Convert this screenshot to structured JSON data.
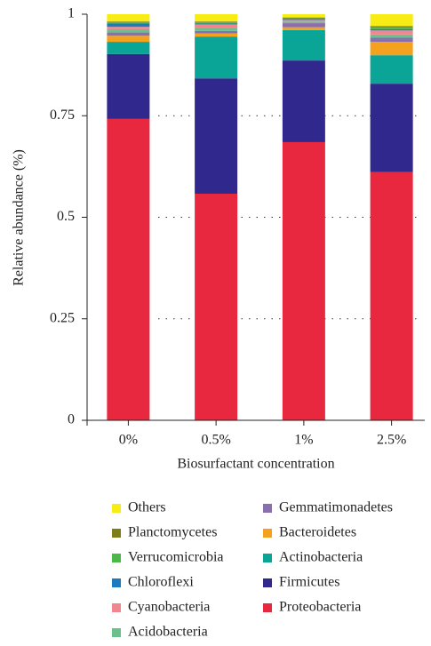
{
  "chart_data": {
    "type": "stacked_bar",
    "xlabel": "Biosurfactant concentration",
    "ylabel": "Relative abundance (%)",
    "categories": [
      "0%",
      "0.5%",
      "1%",
      "2.5%"
    ],
    "ylim": [
      0,
      1
    ],
    "yticks": [
      0,
      0.25,
      0.5,
      0.75,
      1
    ],
    "grid": true,
    "series": [
      {
        "name": "Proteobacteria",
        "color": "#e8283f",
        "values": [
          0.742,
          0.558,
          0.685,
          0.611
        ]
      },
      {
        "name": "Firmicutes",
        "color": "#30288c",
        "values": [
          0.16,
          0.284,
          0.201,
          0.218
        ]
      },
      {
        "name": "Actinobacteria",
        "color": "#0aa597",
        "values": [
          0.03,
          0.103,
          0.075,
          0.07
        ]
      },
      {
        "name": "Bacteroidetes",
        "color": "#f4a11e",
        "values": [
          0.015,
          0.008,
          0.007,
          0.033
        ]
      },
      {
        "name": "Gemmatimonadetes",
        "color": "#8a6fb0",
        "values": [
          0.008,
          0.006,
          0.01,
          0.01
        ]
      },
      {
        "name": "Acidobacteria",
        "color": "#6cc08b",
        "values": [
          0.008,
          0.006,
          0.004,
          0.008
        ]
      },
      {
        "name": "Cyanobacteria",
        "color": "#f2868f",
        "values": [
          0.006,
          0.01,
          0.004,
          0.01
        ]
      },
      {
        "name": "Chloroflexi",
        "color": "#1c7bc0",
        "values": [
          0.008,
          0.002,
          0.002,
          0.003
        ]
      },
      {
        "name": "Verrucomicrobia",
        "color": "#4cb848",
        "values": [
          0.003,
          0.003,
          0.002,
          0.005
        ]
      },
      {
        "name": "Planctomycetes",
        "color": "#7d7d1a",
        "values": [
          0.002,
          0.002,
          0.002,
          0.003
        ]
      },
      {
        "name": "Others",
        "color": "#f7ec13",
        "values": [
          0.018,
          0.018,
          0.008,
          0.029
        ]
      }
    ]
  }
}
